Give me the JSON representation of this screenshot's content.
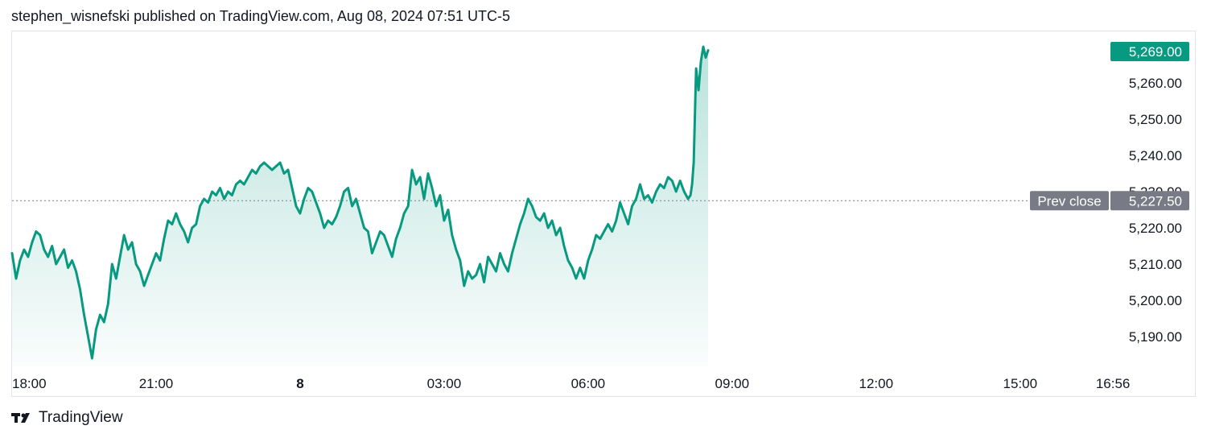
{
  "header": {
    "publisher_line": "stephen_wisnefski published on TradingView.com, Aug 08, 2024 07:51 UTC-5"
  },
  "brand": {
    "name": "TradingView",
    "icon": "tradingview-logo-icon"
  },
  "colors": {
    "line": "#089981",
    "prev_close_badge": "#787b86",
    "last_price_badge": "#089981"
  },
  "chart_data": {
    "type": "area",
    "ylim": [
      5182,
      5272
    ],
    "y_ticks": [
      "5,190.00",
      "5,200.00",
      "5,210.00",
      "5,220.00",
      "5,230.00",
      "5,240.00",
      "5,250.00",
      "5,260.00"
    ],
    "y_tick_values": [
      5190,
      5200,
      5210,
      5220,
      5230,
      5240,
      5250,
      5260
    ],
    "x_ticks": [
      {
        "label": "18:00",
        "t": 0
      },
      {
        "label": "21:00",
        "t": 180
      },
      {
        "label": "8",
        "t": 360
      },
      {
        "label": "03:00",
        "t": 540
      },
      {
        "label": "06:00",
        "t": 720
      },
      {
        "label": "09:00",
        "t": 900
      },
      {
        "label": "12:00",
        "t": 1080
      },
      {
        "label": "15:00",
        "t": 1260
      },
      {
        "label": "16:56",
        "t": 1376
      }
    ],
    "prev_close": {
      "label": "Prev close",
      "value": 5227.5,
      "value_label": "5,227.50"
    },
    "last_price": {
      "value": 5269.0,
      "value_label": "5,269.00"
    },
    "series": [
      {
        "points": [
          [
            0,
            5213
          ],
          [
            5,
            5206
          ],
          [
            10,
            5211
          ],
          [
            15,
            5214
          ],
          [
            20,
            5212
          ],
          [
            25,
            5216
          ],
          [
            30,
            5219
          ],
          [
            35,
            5218
          ],
          [
            40,
            5214
          ],
          [
            45,
            5212
          ],
          [
            50,
            5215
          ],
          [
            55,
            5210
          ],
          [
            60,
            5212
          ],
          [
            65,
            5214
          ],
          [
            70,
            5209
          ],
          [
            75,
            5211
          ],
          [
            80,
            5208
          ],
          [
            85,
            5203
          ],
          [
            90,
            5196
          ],
          [
            95,
            5190
          ],
          [
            100,
            5184
          ],
          [
            105,
            5192
          ],
          [
            110,
            5196
          ],
          [
            115,
            5194
          ],
          [
            120,
            5199
          ],
          [
            125,
            5210
          ],
          [
            130,
            5206
          ],
          [
            135,
            5212
          ],
          [
            140,
            5218
          ],
          [
            145,
            5214
          ],
          [
            150,
            5216
          ],
          [
            155,
            5210
          ],
          [
            160,
            5208
          ],
          [
            165,
            5204
          ],
          [
            170,
            5207
          ],
          [
            175,
            5210
          ],
          [
            180,
            5213
          ],
          [
            185,
            5211
          ],
          [
            190,
            5217
          ],
          [
            195,
            5222
          ],
          [
            200,
            5221
          ],
          [
            205,
            5224
          ],
          [
            210,
            5221
          ],
          [
            215,
            5219
          ],
          [
            220,
            5216
          ],
          [
            225,
            5220
          ],
          [
            230,
            5221
          ],
          [
            235,
            5226
          ],
          [
            240,
            5228
          ],
          [
            245,
            5227
          ],
          [
            250,
            5230
          ],
          [
            255,
            5229
          ],
          [
            260,
            5231
          ],
          [
            265,
            5228
          ],
          [
            270,
            5230
          ],
          [
            275,
            5229
          ],
          [
            280,
            5232
          ],
          [
            285,
            5233
          ],
          [
            290,
            5232
          ],
          [
            295,
            5234
          ],
          [
            300,
            5236
          ],
          [
            305,
            5235
          ],
          [
            310,
            5237
          ],
          [
            315,
            5238
          ],
          [
            320,
            5237
          ],
          [
            325,
            5236
          ],
          [
            330,
            5237
          ],
          [
            335,
            5238
          ],
          [
            340,
            5235
          ],
          [
            345,
            5236
          ],
          [
            350,
            5231
          ],
          [
            355,
            5226
          ],
          [
            360,
            5224
          ],
          [
            365,
            5228
          ],
          [
            370,
            5231
          ],
          [
            375,
            5230
          ],
          [
            380,
            5227
          ],
          [
            385,
            5224
          ],
          [
            390,
            5220
          ],
          [
            395,
            5222
          ],
          [
            400,
            5221
          ],
          [
            405,
            5223
          ],
          [
            410,
            5226
          ],
          [
            415,
            5230
          ],
          [
            420,
            5231
          ],
          [
            425,
            5226
          ],
          [
            430,
            5228
          ],
          [
            435,
            5224
          ],
          [
            440,
            5220
          ],
          [
            445,
            5219
          ],
          [
            450,
            5213
          ],
          [
            455,
            5216
          ],
          [
            460,
            5219
          ],
          [
            465,
            5218
          ],
          [
            470,
            5215
          ],
          [
            475,
            5212
          ],
          [
            480,
            5217
          ],
          [
            485,
            5220
          ],
          [
            490,
            5224
          ],
          [
            495,
            5226
          ],
          [
            500,
            5236
          ],
          [
            505,
            5232
          ],
          [
            510,
            5234
          ],
          [
            515,
            5228
          ],
          [
            520,
            5235
          ],
          [
            525,
            5231
          ],
          [
            530,
            5226
          ],
          [
            535,
            5229
          ],
          [
            540,
            5222
          ],
          [
            545,
            5225
          ],
          [
            550,
            5218
          ],
          [
            555,
            5214
          ],
          [
            560,
            5211
          ],
          [
            565,
            5204
          ],
          [
            570,
            5208
          ],
          [
            575,
            5206
          ],
          [
            580,
            5207
          ],
          [
            585,
            5210
          ],
          [
            590,
            5205
          ],
          [
            595,
            5212
          ],
          [
            600,
            5210
          ],
          [
            605,
            5208
          ],
          [
            610,
            5213
          ],
          [
            615,
            5210
          ],
          [
            620,
            5208
          ],
          [
            625,
            5213
          ],
          [
            630,
            5217
          ],
          [
            635,
            5221
          ],
          [
            640,
            5224
          ],
          [
            645,
            5228
          ],
          [
            650,
            5226
          ],
          [
            655,
            5223
          ],
          [
            660,
            5222
          ],
          [
            665,
            5224
          ],
          [
            670,
            5220
          ],
          [
            675,
            5222
          ],
          [
            680,
            5218
          ],
          [
            685,
            5220
          ],
          [
            690,
            5215
          ],
          [
            695,
            5211
          ],
          [
            700,
            5209
          ],
          [
            705,
            5206
          ],
          [
            710,
            5209
          ],
          [
            715,
            5206
          ],
          [
            720,
            5211
          ],
          [
            725,
            5214
          ],
          [
            730,
            5218
          ],
          [
            735,
            5217
          ],
          [
            740,
            5219
          ],
          [
            745,
            5221
          ],
          [
            750,
            5219
          ],
          [
            755,
            5222
          ],
          [
            760,
            5227
          ],
          [
            765,
            5224
          ],
          [
            770,
            5221
          ],
          [
            775,
            5226
          ],
          [
            780,
            5228
          ],
          [
            785,
            5232
          ],
          [
            790,
            5228
          ],
          [
            795,
            5229
          ],
          [
            800,
            5227
          ],
          [
            805,
            5230
          ],
          [
            810,
            5232
          ],
          [
            815,
            5231
          ],
          [
            820,
            5234
          ],
          [
            825,
            5233
          ],
          [
            830,
            5230
          ],
          [
            835,
            5233
          ],
          [
            840,
            5230
          ],
          [
            845,
            5228
          ],
          [
            848,
            5229
          ],
          [
            850,
            5232
          ],
          [
            852,
            5238
          ],
          [
            855,
            5264
          ],
          [
            858,
            5258
          ],
          [
            861,
            5266
          ],
          [
            864,
            5270
          ],
          [
            867,
            5267
          ],
          [
            870,
            5269
          ]
        ]
      }
    ]
  }
}
